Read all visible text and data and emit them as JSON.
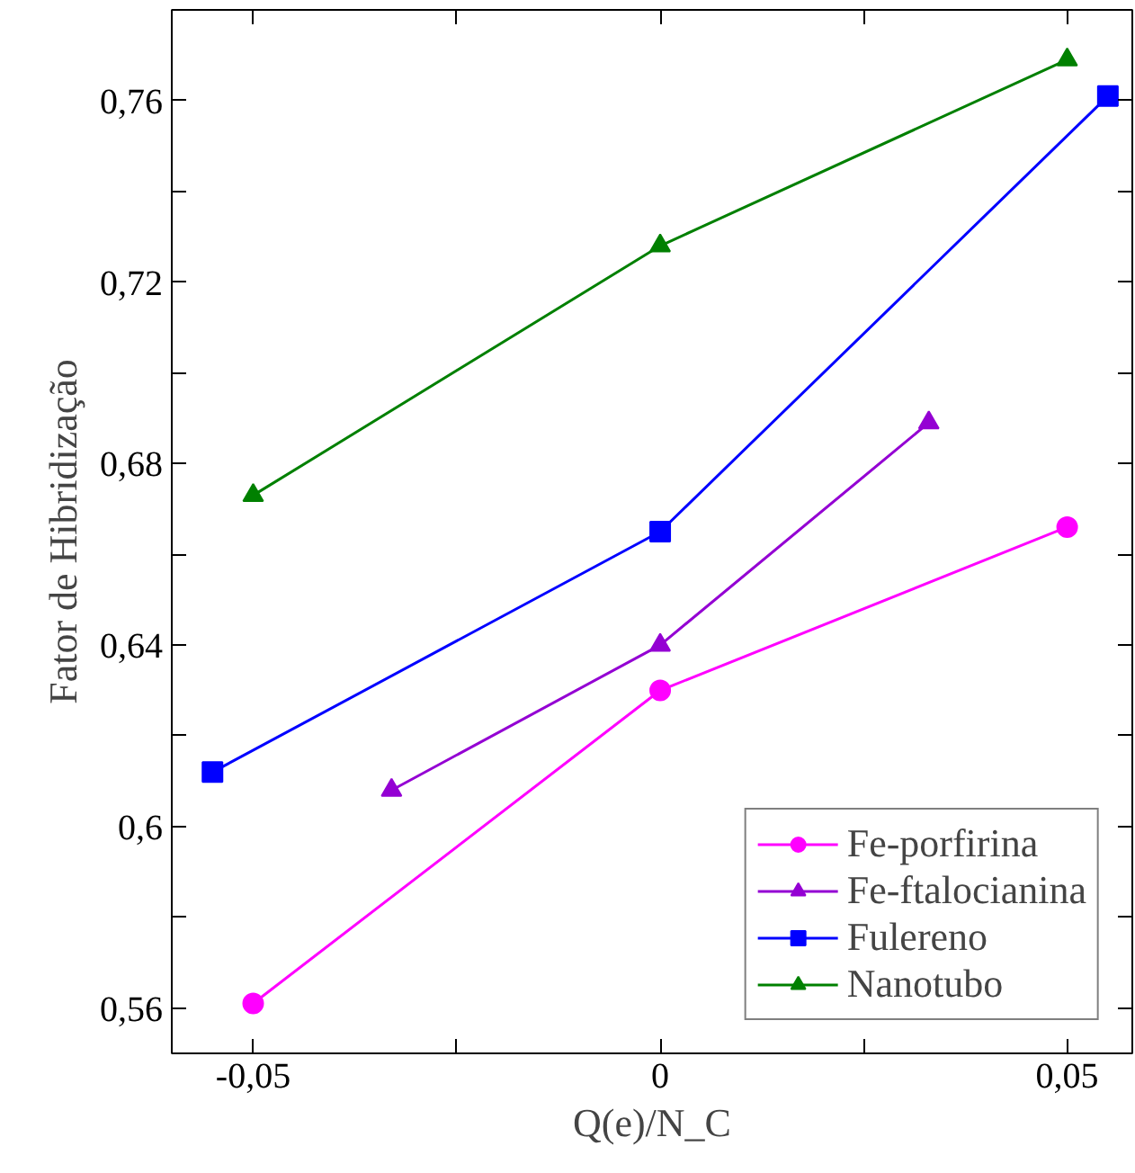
{
  "chart_data": {
    "type": "line",
    "xlabel": "Q(e)/N_C",
    "ylabel": "Fator de Hibridização",
    "xlim": [
      -0.06,
      0.058
    ],
    "ylim": [
      0.55,
      0.78
    ],
    "xticks": [
      {
        "value": -0.05,
        "label": "-0,05"
      },
      {
        "value": -0.025,
        "label": null
      },
      {
        "value": 0,
        "label": "0"
      },
      {
        "value": 0.025,
        "label": null
      },
      {
        "value": 0.05,
        "label": "0,05"
      }
    ],
    "yticks": [
      {
        "value": 0.56,
        "label": "0,56"
      },
      {
        "value": 0.58,
        "label": null
      },
      {
        "value": 0.6,
        "label": "0,6"
      },
      {
        "value": 0.62,
        "label": null
      },
      {
        "value": 0.64,
        "label": "0,64"
      },
      {
        "value": 0.66,
        "label": null
      },
      {
        "value": 0.68,
        "label": "0,68"
      },
      {
        "value": 0.7,
        "label": null
      },
      {
        "value": 0.72,
        "label": "0,72"
      },
      {
        "value": 0.74,
        "label": null
      },
      {
        "value": 0.76,
        "label": "0,76"
      }
    ],
    "grid": false,
    "legend": "bottom right",
    "series": [
      {
        "name": "Fe-porfirina",
        "color": "#ff00ff",
        "marker": "circle",
        "x": [
          -0.05,
          0,
          0.05
        ],
        "values": [
          0.561,
          0.63,
          0.666
        ]
      },
      {
        "name": "Fe-ftalocianina",
        "color": "#9400d3",
        "marker": "triangle",
        "x": [
          -0.033,
          0,
          0.033
        ],
        "values": [
          0.608,
          0.64,
          0.689
        ]
      },
      {
        "name": "Fulereno",
        "color": "#0000ff",
        "marker": "square",
        "x": [
          -0.055,
          0,
          0.055
        ],
        "values": [
          0.612,
          0.665,
          0.761
        ]
      },
      {
        "name": "Nanotubo",
        "color": "#008000",
        "marker": "triangle",
        "x": [
          -0.05,
          0,
          0.05
        ],
        "values": [
          0.673,
          0.728,
          0.769
        ]
      }
    ]
  }
}
